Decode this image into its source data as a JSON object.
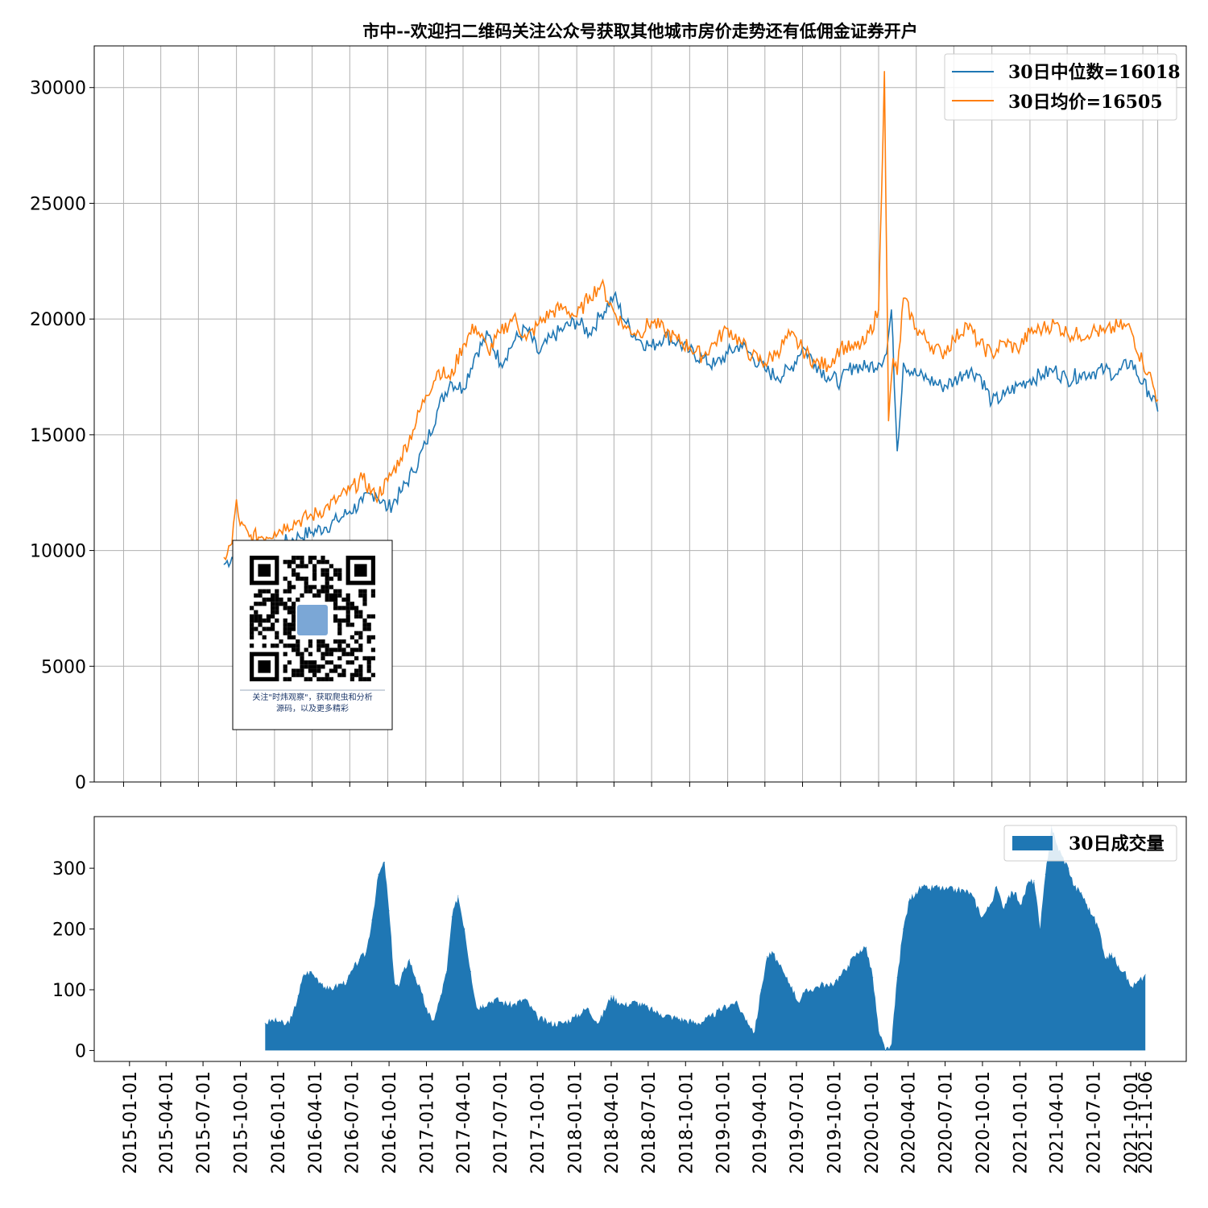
{
  "title": "市中--欢迎扫二维码关注公众号获取其他城市房价走势还有低佣金证券开户",
  "colors": {
    "median": "#1f77b4",
    "mean": "#ff7f0e",
    "volume": "#1f77b4",
    "grid": "#b0b0b0"
  },
  "qr_caption": [
    "关注\"时炜观察\"，获取爬虫和分析",
    "源码，以及更多精彩"
  ],
  "chart_data": [
    {
      "type": "line",
      "title": "市中--欢迎扫二维码关注公众号获取其他城市房价走势还有低佣金证券开户",
      "xlabel": "",
      "ylabel": "",
      "xlim": [
        "2014-10-22",
        "2022-01-14"
      ],
      "ylim": [
        0,
        31800
      ],
      "yticks": [
        0,
        5000,
        10000,
        15000,
        20000,
        25000,
        30000
      ],
      "xticks": [
        "2015-01-01",
        "2015-04-01",
        "2015-07-01",
        "2015-10-01",
        "2016-01-01",
        "2016-04-01",
        "2016-07-01",
        "2016-10-01",
        "2017-01-01",
        "2017-04-01",
        "2017-07-01",
        "2017-10-01",
        "2018-01-01",
        "2018-04-01",
        "2018-07-01",
        "2018-10-01",
        "2019-01-01",
        "2019-04-01",
        "2019-07-01",
        "2019-10-01",
        "2020-01-01",
        "2020-04-01",
        "2020-07-01",
        "2020-10-01",
        "2021-01-01",
        "2021-04-01",
        "2021-07-01",
        "2021-10-01",
        "2021-11-06"
      ],
      "grid": true,
      "legend": "top-right",
      "series": [
        {
          "name": "30日中位数=16018",
          "x": [
            "2015-09-01",
            "2015-09-20",
            "2015-10-10",
            "2015-11-01",
            "2015-12-01",
            "2016-01-01",
            "2016-02-01",
            "2016-03-01",
            "2016-04-01",
            "2016-05-01",
            "2016-06-01",
            "2016-07-01",
            "2016-08-01",
            "2016-09-01",
            "2016-10-01",
            "2016-11-01",
            "2016-12-01",
            "2017-01-01",
            "2017-02-01",
            "2017-03-01",
            "2017-04-01",
            "2017-05-01",
            "2017-06-01",
            "2017-07-01",
            "2017-08-01",
            "2017-09-01",
            "2017-10-01",
            "2017-11-01",
            "2017-12-01",
            "2018-01-01",
            "2018-02-01",
            "2018-03-01",
            "2018-04-01",
            "2018-05-01",
            "2018-06-01",
            "2018-07-01",
            "2018-08-01",
            "2018-09-01",
            "2018-10-01",
            "2018-11-01",
            "2018-12-01",
            "2019-01-01",
            "2019-02-01",
            "2019-03-01",
            "2019-04-01",
            "2019-05-01",
            "2019-06-01",
            "2019-07-01",
            "2019-08-01",
            "2019-09-01",
            "2019-10-01",
            "2019-11-01",
            "2019-12-01",
            "2020-01-01",
            "2020-01-20",
            "2020-02-01",
            "2020-02-15",
            "2020-03-01",
            "2020-04-01",
            "2020-05-01",
            "2020-06-01",
            "2020-07-01",
            "2020-08-01",
            "2020-09-01",
            "2020-10-01",
            "2020-11-01",
            "2020-12-01",
            "2021-01-01",
            "2021-02-01",
            "2021-03-01",
            "2021-04-01",
            "2021-05-01",
            "2021-06-01",
            "2021-07-01",
            "2021-08-01",
            "2021-09-01",
            "2021-10-01",
            "2021-10-15",
            "2021-11-06"
          ],
          "y": [
            9400,
            9700,
            9800,
            9900,
            10000,
            10100,
            10400,
            10600,
            10800,
            11000,
            11300,
            11700,
            12100,
            12500,
            11800,
            12500,
            13400,
            14600,
            16200,
            17300,
            17000,
            18500,
            19300,
            18100,
            19000,
            19600,
            18500,
            19200,
            19600,
            19900,
            19400,
            20200,
            21000,
            19800,
            19100,
            18800,
            19300,
            19000,
            18600,
            18300,
            18000,
            18500,
            18900,
            18400,
            17800,
            17500,
            17800,
            18800,
            18100,
            17500,
            17300,
            18000,
            17900,
            18100,
            18500,
            20400,
            14300,
            18100,
            17600,
            17400,
            17100,
            17300,
            17800,
            17600,
            16400,
            16700,
            17100,
            17400,
            17600,
            17800,
            17400,
            17600,
            17700,
            17800,
            17600,
            18200,
            17200,
            16900,
            16018
          ]
        },
        {
          "name": "30日均价=16505",
          "x": [
            "2015-09-01",
            "2015-09-20",
            "2015-10-01",
            "2015-10-10",
            "2015-11-01",
            "2015-12-01",
            "2016-01-01",
            "2016-02-01",
            "2016-03-01",
            "2016-04-01",
            "2016-05-01",
            "2016-06-01",
            "2016-07-01",
            "2016-08-01",
            "2016-09-01",
            "2016-10-01",
            "2016-11-01",
            "2016-12-01",
            "2017-01-01",
            "2017-02-01",
            "2017-03-01",
            "2017-04-01",
            "2017-05-01",
            "2017-06-01",
            "2017-07-01",
            "2017-08-01",
            "2017-09-01",
            "2017-10-01",
            "2017-11-01",
            "2017-12-01",
            "2018-01-01",
            "2018-02-01",
            "2018-03-01",
            "2018-04-01",
            "2018-05-01",
            "2018-06-01",
            "2018-07-01",
            "2018-08-01",
            "2018-09-01",
            "2018-10-01",
            "2018-11-01",
            "2018-12-01",
            "2019-01-01",
            "2019-02-01",
            "2019-03-01",
            "2019-04-01",
            "2019-05-01",
            "2019-06-01",
            "2019-07-01",
            "2019-08-01",
            "2019-09-01",
            "2019-10-01",
            "2019-11-01",
            "2019-12-01",
            "2020-01-01",
            "2020-01-15",
            "2020-01-25",
            "2020-02-05",
            "2020-02-15",
            "2020-03-01",
            "2020-04-01",
            "2020-05-01",
            "2020-06-01",
            "2020-07-01",
            "2020-08-01",
            "2020-09-01",
            "2020-10-01",
            "2020-11-01",
            "2020-12-01",
            "2021-01-01",
            "2021-02-01",
            "2021-03-01",
            "2021-04-01",
            "2021-05-01",
            "2021-06-01",
            "2021-07-01",
            "2021-08-01",
            "2021-09-01",
            "2021-10-01",
            "2021-10-15",
            "2021-11-06"
          ],
          "y": [
            9700,
            10300,
            12200,
            11100,
            10600,
            10600,
            10800,
            11100,
            11300,
            11500,
            11800,
            12200,
            12600,
            13100,
            12300,
            13000,
            14000,
            15200,
            16700,
            17800,
            17400,
            18900,
            19700,
            18600,
            19400,
            20100,
            19100,
            19800,
            20300,
            20500,
            20100,
            21000,
            21500,
            20300,
            19600,
            19400,
            19900,
            19500,
            19100,
            18800,
            18400,
            19000,
            19600,
            19000,
            18400,
            18100,
            18600,
            19300,
            18700,
            18100,
            18000,
            18800,
            18700,
            19000,
            20400,
            30700,
            15600,
            18300,
            17600,
            20900,
            19600,
            19000,
            18500,
            19100,
            19800,
            18900,
            18500,
            19000,
            18700,
            19400,
            19600,
            19800,
            19400,
            19300,
            19500,
            19400,
            19700,
            19600,
            18100,
            17700,
            16505
          ]
        }
      ]
    },
    {
      "type": "area",
      "xlim": [
        "2014-10-22",
        "2022-01-14"
      ],
      "ylim": [
        -18,
        385
      ],
      "yticks": [
        0,
        100,
        200,
        300
      ],
      "grid": false,
      "legend": "top-right",
      "series": [
        {
          "name": "30日成交量",
          "x": [
            "2015-12-01",
            "2015-12-20",
            "2016-01-05",
            "2016-01-20",
            "2016-02-05",
            "2016-02-20",
            "2016-03-05",
            "2016-03-20",
            "2016-04-05",
            "2016-04-20",
            "2016-05-05",
            "2016-05-20",
            "2016-06-05",
            "2016-06-20",
            "2016-07-05",
            "2016-07-20",
            "2016-08-05",
            "2016-08-20",
            "2016-09-05",
            "2016-09-20",
            "2016-10-01",
            "2016-10-15",
            "2016-10-25",
            "2016-11-05",
            "2016-11-20",
            "2016-12-05",
            "2016-12-20",
            "2017-01-05",
            "2017-01-20",
            "2017-02-05",
            "2017-02-20",
            "2017-03-05",
            "2017-03-20",
            "2017-04-05",
            "2017-04-20",
            "2017-05-05",
            "2017-05-20",
            "2017-06-05",
            "2017-06-20",
            "2017-07-05",
            "2017-08-01",
            "2017-09-01",
            "2017-10-01",
            "2017-11-01",
            "2017-12-01",
            "2018-01-01",
            "2018-02-01",
            "2018-03-01",
            "2018-04-01",
            "2018-05-01",
            "2018-06-01",
            "2018-07-01",
            "2018-08-01",
            "2018-09-01",
            "2018-10-01",
            "2018-11-01",
            "2018-12-01",
            "2019-01-01",
            "2019-02-01",
            "2019-03-01",
            "2019-03-20",
            "2019-04-05",
            "2019-04-20",
            "2019-05-05",
            "2019-05-20",
            "2019-06-05",
            "2019-06-20",
            "2019-07-05",
            "2019-07-20",
            "2019-08-05",
            "2019-08-20",
            "2019-09-05",
            "2019-09-20",
            "2019-10-05",
            "2019-10-20",
            "2019-11-05",
            "2019-11-20",
            "2019-12-05",
            "2019-12-20",
            "2020-01-05",
            "2020-01-20",
            "2020-02-05",
            "2020-02-20",
            "2020-03-05",
            "2020-03-20",
            "2020-04-05",
            "2020-04-20",
            "2020-05-05",
            "2020-05-20",
            "2020-06-05",
            "2020-07-01",
            "2020-08-01",
            "2020-09-01",
            "2020-10-01",
            "2020-10-20",
            "2020-11-05",
            "2020-11-20",
            "2020-12-05",
            "2020-12-20",
            "2021-01-05",
            "2021-01-20",
            "2021-02-05",
            "2021-02-20",
            "2021-03-05",
            "2021-03-20",
            "2021-04-01",
            "2021-04-15",
            "2021-05-01",
            "2021-05-15",
            "2021-06-01",
            "2021-06-15",
            "2021-07-01",
            "2021-07-15",
            "2021-08-01",
            "2021-08-15",
            "2021-09-01",
            "2021-09-15",
            "2021-10-01",
            "2021-10-15",
            "2021-11-01",
            "2021-11-06"
          ],
          "y": [
            45,
            50,
            48,
            42,
            55,
            90,
            125,
            130,
            120,
            110,
            100,
            105,
            110,
            115,
            135,
            150,
            160,
            215,
            290,
            310,
            230,
            110,
            105,
            130,
            150,
            120,
            95,
            60,
            50,
            90,
            130,
            220,
            255,
            200,
            130,
            70,
            75,
            80,
            85,
            80,
            75,
            85,
            55,
            45,
            45,
            55,
            70,
            45,
            90,
            75,
            80,
            70,
            60,
            55,
            50,
            45,
            55,
            70,
            80,
            50,
            30,
            100,
            155,
            160,
            140,
            120,
            105,
            80,
            95,
            100,
            105,
            110,
            105,
            115,
            125,
            140,
            155,
            165,
            170,
            120,
            30,
            0,
            10,
            120,
            200,
            250,
            260,
            270,
            265,
            270,
            265,
            265,
            260,
            220,
            240,
            270,
            235,
            255,
            260,
            240,
            275,
            280,
            200,
            290,
            370,
            340,
            320,
            300,
            270,
            260,
            240,
            220,
            200,
            150,
            160,
            140,
            130,
            105,
            110,
            120,
            125
          ]
        }
      ]
    }
  ]
}
